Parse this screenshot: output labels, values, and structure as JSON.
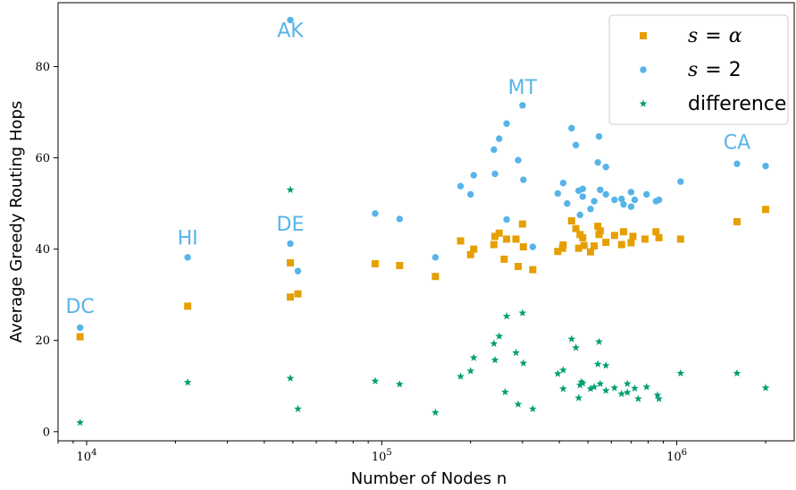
{
  "chart_data": {
    "type": "scatter",
    "xlabel": "Number of Nodes n",
    "ylabel": "Average Greedy Routing Hops",
    "xscale": "log",
    "xlim": [
      8000,
      2500000
    ],
    "ylim": [
      -2,
      94
    ],
    "x_ticks": [
      {
        "value": 10000,
        "label": "10^4"
      },
      {
        "value": 100000,
        "label": "10^5"
      },
      {
        "value": 1000000,
        "label": "10^6"
      }
    ],
    "y_ticks": [
      0,
      20,
      40,
      60,
      80
    ],
    "legend_position": "top-right",
    "series": [
      {
        "name": "s = α",
        "marker": "square",
        "color": "#E69F00",
        "points": [
          [
            9500,
            20.8
          ],
          [
            22000,
            27.5
          ],
          [
            49000,
            37
          ],
          [
            49000,
            29.5
          ],
          [
            52000,
            30.2
          ],
          [
            95000,
            36.8
          ],
          [
            115000,
            36.4
          ],
          [
            152000,
            34
          ],
          [
            185000,
            41.8
          ],
          [
            200000,
            38.8
          ],
          [
            205000,
            40
          ],
          [
            240000,
            41
          ],
          [
            242000,
            42.8
          ],
          [
            250000,
            43.5
          ],
          [
            260000,
            37.8
          ],
          [
            265000,
            42.2
          ],
          [
            285000,
            42.2
          ],
          [
            290000,
            36.2
          ],
          [
            300000,
            45.5
          ],
          [
            302000,
            40.5
          ],
          [
            325000,
            35.5
          ],
          [
            395000,
            39.5
          ],
          [
            410000,
            40.2
          ],
          [
            412000,
            40.9
          ],
          [
            440000,
            46.2
          ],
          [
            455000,
            44.5
          ],
          [
            465000,
            40.2
          ],
          [
            470000,
            43.2
          ],
          [
            480000,
            42.5
          ],
          [
            485000,
            40.8
          ],
          [
            510000,
            39.4
          ],
          [
            525000,
            40.7
          ],
          [
            540000,
            45
          ],
          [
            545000,
            43.2
          ],
          [
            550000,
            44
          ],
          [
            575000,
            41.5
          ],
          [
            615000,
            43
          ],
          [
            650000,
            41
          ],
          [
            660000,
            43.8
          ],
          [
            700000,
            41.4
          ],
          [
            710000,
            42.8
          ],
          [
            780000,
            42.2
          ],
          [
            850000,
            43.8
          ],
          [
            870000,
            42.5
          ],
          [
            1030000,
            42.2
          ],
          [
            1600000,
            46
          ],
          [
            2000000,
            48.7
          ]
        ]
      },
      {
        "name": "s = 2",
        "marker": "circle",
        "color": "#56B4E9",
        "points": [
          [
            9500,
            22.8
          ],
          [
            22000,
            38.2
          ],
          [
            49000,
            90.2
          ],
          [
            49000,
            41.2
          ],
          [
            52000,
            35.2
          ],
          [
            95000,
            47.8
          ],
          [
            115000,
            46.6
          ],
          [
            152000,
            38.2
          ],
          [
            185000,
            53.8
          ],
          [
            200000,
            52
          ],
          [
            205000,
            56.2
          ],
          [
            240000,
            61.8
          ],
          [
            242000,
            56.5
          ],
          [
            250000,
            64.2
          ],
          [
            265000,
            67.5
          ],
          [
            265000,
            46.5
          ],
          [
            290000,
            59.5
          ],
          [
            300000,
            71.5
          ],
          [
            302000,
            55.2
          ],
          [
            325000,
            40.5
          ],
          [
            395000,
            52.2
          ],
          [
            412000,
            54.5
          ],
          [
            425000,
            50
          ],
          [
            440000,
            66.5
          ],
          [
            455000,
            62.8
          ],
          [
            465000,
            52.8
          ],
          [
            470000,
            47.5
          ],
          [
            480000,
            53.2
          ],
          [
            480000,
            51.5
          ],
          [
            510000,
            48.8
          ],
          [
            525000,
            50.5
          ],
          [
            540000,
            59
          ],
          [
            545000,
            64.7
          ],
          [
            550000,
            53
          ],
          [
            575000,
            58
          ],
          [
            575000,
            52
          ],
          [
            615000,
            50.8
          ],
          [
            650000,
            51
          ],
          [
            660000,
            49.8
          ],
          [
            700000,
            52.5
          ],
          [
            700000,
            49.3
          ],
          [
            720000,
            50.8
          ],
          [
            790000,
            52
          ],
          [
            850000,
            50.5
          ],
          [
            870000,
            50.8
          ],
          [
            1030000,
            54.8
          ],
          [
            1600000,
            58.7
          ],
          [
            2000000,
            58.2
          ]
        ]
      },
      {
        "name": "difference",
        "marker": "star",
        "color": "#009E73",
        "points": [
          [
            9500,
            2
          ],
          [
            22000,
            10.8
          ],
          [
            49000,
            53
          ],
          [
            49000,
            11.7
          ],
          [
            52000,
            5
          ],
          [
            95000,
            11.1
          ],
          [
            115000,
            10.4
          ],
          [
            152000,
            4.2
          ],
          [
            185000,
            12.1
          ],
          [
            200000,
            13.3
          ],
          [
            205000,
            16.2
          ],
          [
            240000,
            19.3
          ],
          [
            242000,
            15.7
          ],
          [
            250000,
            20.9
          ],
          [
            262000,
            8.7
          ],
          [
            265000,
            25.3
          ],
          [
            285000,
            17.3
          ],
          [
            290000,
            6
          ],
          [
            300000,
            26
          ],
          [
            302000,
            15
          ],
          [
            325000,
            5
          ],
          [
            395000,
            12.7
          ],
          [
            412000,
            13.5
          ],
          [
            412000,
            9.4
          ],
          [
            440000,
            20.3
          ],
          [
            455000,
            18.4
          ],
          [
            465000,
            7.4
          ],
          [
            470000,
            10.2
          ],
          [
            475000,
            10.9
          ],
          [
            480000,
            10.6
          ],
          [
            510000,
            9.4
          ],
          [
            525000,
            9.8
          ],
          [
            540000,
            14.8
          ],
          [
            545000,
            19.7
          ],
          [
            550000,
            10.5
          ],
          [
            575000,
            9
          ],
          [
            575000,
            14.5
          ],
          [
            615000,
            9.6
          ],
          [
            650000,
            8.3
          ],
          [
            680000,
            8.6
          ],
          [
            680000,
            10.5
          ],
          [
            720000,
            9.5
          ],
          [
            740000,
            7.2
          ],
          [
            790000,
            9.8
          ],
          [
            860000,
            8
          ],
          [
            870000,
            7.2
          ],
          [
            1030000,
            12.8
          ],
          [
            1600000,
            12.8
          ],
          [
            2000000,
            9.6
          ]
        ]
      }
    ],
    "annotations": [
      {
        "text": "DC",
        "x": 9500,
        "y": 26
      },
      {
        "text": "HI",
        "x": 22000,
        "y": 41
      },
      {
        "text": "AK",
        "x": 49000,
        "y": 86.5
      },
      {
        "text": "DE",
        "x": 49000,
        "y": 44
      },
      {
        "text": "MT",
        "x": 300000,
        "y": 74
      },
      {
        "text": "CA",
        "x": 1600000,
        "y": 62
      }
    ],
    "annotation_color": "#56B4E9"
  }
}
